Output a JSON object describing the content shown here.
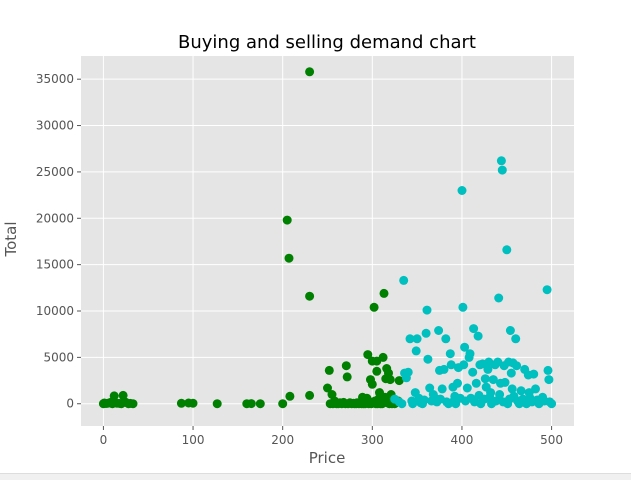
{
  "chart_data": {
    "type": "scatter",
    "title": "Buying and selling demand chart",
    "xlabel": "Price",
    "ylabel": "Total",
    "xlim": [
      -25,
      525
    ],
    "ylim": [
      -2400,
      37500
    ],
    "xticks": [
      0,
      100,
      200,
      300,
      400,
      500
    ],
    "yticks": [
      0,
      5000,
      10000,
      15000,
      20000,
      25000,
      30000,
      35000
    ],
    "grid": true,
    "legend": "none",
    "series": [
      {
        "color": "#008000",
        "points": [
          [
            0,
            0
          ],
          [
            1,
            80
          ],
          [
            3,
            30
          ],
          [
            5,
            60
          ],
          [
            8,
            150
          ],
          [
            10,
            0
          ],
          [
            12,
            850
          ],
          [
            15,
            60
          ],
          [
            18,
            40
          ],
          [
            20,
            0
          ],
          [
            22,
            900
          ],
          [
            25,
            150
          ],
          [
            28,
            0
          ],
          [
            30,
            40
          ],
          [
            33,
            0
          ],
          [
            87,
            50
          ],
          [
            95,
            80
          ],
          [
            100,
            60
          ],
          [
            127,
            0
          ],
          [
            160,
            0
          ],
          [
            165,
            20
          ],
          [
            175,
            0
          ],
          [
            200,
            0
          ],
          [
            205,
            19800
          ],
          [
            207,
            15700
          ],
          [
            208,
            800
          ],
          [
            230,
            35800
          ],
          [
            230,
            11600
          ],
          [
            230,
            900
          ],
          [
            250,
            1700
          ],
          [
            252,
            3600
          ],
          [
            253,
            0
          ],
          [
            255,
            1000
          ],
          [
            256,
            0
          ],
          [
            258,
            300
          ],
          [
            260,
            0
          ],
          [
            262,
            0
          ],
          [
            264,
            100
          ],
          [
            266,
            0
          ],
          [
            268,
            150
          ],
          [
            270,
            0
          ],
          [
            271,
            4100
          ],
          [
            272,
            2900
          ],
          [
            273,
            0
          ],
          [
            275,
            100
          ],
          [
            277,
            0
          ],
          [
            279,
            50
          ],
          [
            280,
            0
          ],
          [
            282,
            0
          ],
          [
            283,
            100
          ],
          [
            285,
            0
          ],
          [
            287,
            150
          ],
          [
            288,
            0
          ],
          [
            289,
            700
          ],
          [
            290,
            0
          ],
          [
            291,
            300
          ],
          [
            292,
            0
          ],
          [
            293,
            100
          ],
          [
            294,
            600
          ],
          [
            295,
            5300
          ],
          [
            296,
            0
          ],
          [
            297,
            100
          ],
          [
            298,
            2600
          ],
          [
            299,
            0
          ],
          [
            300,
            2100
          ],
          [
            300,
            4600
          ],
          [
            301,
            200
          ],
          [
            302,
            10400
          ],
          [
            303,
            300
          ],
          [
            304,
            0
          ],
          [
            305,
            3500
          ],
          [
            305,
            4600
          ],
          [
            306,
            0
          ],
          [
            307,
            500
          ],
          [
            308,
            1200
          ],
          [
            309,
            0
          ],
          [
            310,
            300
          ],
          [
            311,
            0
          ],
          [
            312,
            5000
          ],
          [
            313,
            11900
          ],
          [
            314,
            700
          ],
          [
            315,
            2700
          ],
          [
            316,
            3800
          ],
          [
            317,
            100
          ],
          [
            318,
            3300
          ],
          [
            319,
            0
          ],
          [
            320,
            2600
          ],
          [
            321,
            1000
          ],
          [
            322,
            0
          ],
          [
            324,
            400
          ],
          [
            325,
            0
          ],
          [
            327,
            200
          ],
          [
            329,
            300
          ],
          [
            330,
            2500
          ]
        ]
      },
      {
        "color": "#00bfbf",
        "points": [
          [
            325,
            500
          ],
          [
            330,
            200
          ],
          [
            333,
            0
          ],
          [
            335,
            13300
          ],
          [
            336,
            3300
          ],
          [
            338,
            2800
          ],
          [
            340,
            3400
          ],
          [
            342,
            7000
          ],
          [
            344,
            300
          ],
          [
            345,
            0
          ],
          [
            348,
            1200
          ],
          [
            349,
            5700
          ],
          [
            350,
            7000
          ],
          [
            352,
            600
          ],
          [
            354,
            100
          ],
          [
            356,
            0
          ],
          [
            358,
            400
          ],
          [
            360,
            7600
          ],
          [
            361,
            10100
          ],
          [
            362,
            4800
          ],
          [
            364,
            1700
          ],
          [
            366,
            300
          ],
          [
            368,
            1000
          ],
          [
            370,
            600
          ],
          [
            372,
            200
          ],
          [
            374,
            7900
          ],
          [
            375,
            3600
          ],
          [
            376,
            500
          ],
          [
            378,
            1600
          ],
          [
            380,
            3700
          ],
          [
            382,
            7000
          ],
          [
            383,
            200
          ],
          [
            385,
            0
          ],
          [
            387,
            5400
          ],
          [
            388,
            4200
          ],
          [
            390,
            1800
          ],
          [
            391,
            300
          ],
          [
            392,
            800
          ],
          [
            393,
            0
          ],
          [
            395,
            2200
          ],
          [
            396,
            3900
          ],
          [
            398,
            600
          ],
          [
            400,
            23000
          ],
          [
            401,
            10400
          ],
          [
            402,
            4200
          ],
          [
            403,
            6100
          ],
          [
            404,
            300
          ],
          [
            406,
            1700
          ],
          [
            408,
            5000
          ],
          [
            409,
            5400
          ],
          [
            410,
            600
          ],
          [
            412,
            3400
          ],
          [
            413,
            8100
          ],
          [
            414,
            200
          ],
          [
            416,
            2200
          ],
          [
            418,
            7300
          ],
          [
            419,
            900
          ],
          [
            420,
            4200
          ],
          [
            421,
            0
          ],
          [
            423,
            4300
          ],
          [
            425,
            500
          ],
          [
            426,
            2700
          ],
          [
            427,
            1800
          ],
          [
            429,
            3700
          ],
          [
            430,
            4500
          ],
          [
            431,
            700
          ],
          [
            432,
            1200
          ],
          [
            433,
            0
          ],
          [
            435,
            2600
          ],
          [
            437,
            4200
          ],
          [
            438,
            300
          ],
          [
            440,
            4500
          ],
          [
            441,
            11400
          ],
          [
            442,
            1000
          ],
          [
            443,
            2200
          ],
          [
            444,
            26200
          ],
          [
            445,
            25200
          ],
          [
            446,
            200
          ],
          [
            447,
            4100
          ],
          [
            448,
            2300
          ],
          [
            450,
            16600
          ],
          [
            451,
            0
          ],
          [
            452,
            4500
          ],
          [
            453,
            500
          ],
          [
            454,
            7900
          ],
          [
            455,
            3300
          ],
          [
            456,
            1600
          ],
          [
            457,
            4400
          ],
          [
            458,
            800
          ],
          [
            460,
            7000
          ],
          [
            461,
            4100
          ],
          [
            462,
            300
          ],
          [
            464,
            0
          ],
          [
            466,
            1400
          ],
          [
            468,
            500
          ],
          [
            470,
            3700
          ],
          [
            472,
            0
          ],
          [
            474,
            3100
          ],
          [
            475,
            1200
          ],
          [
            476,
            600
          ],
          [
            478,
            200
          ],
          [
            480,
            3200
          ],
          [
            482,
            1600
          ],
          [
            484,
            400
          ],
          [
            486,
            0
          ],
          [
            490,
            700
          ],
          [
            492,
            300
          ],
          [
            495,
            12300
          ],
          [
            496,
            3600
          ],
          [
            497,
            2600
          ],
          [
            498,
            200
          ],
          [
            500,
            0
          ]
        ]
      }
    ]
  }
}
